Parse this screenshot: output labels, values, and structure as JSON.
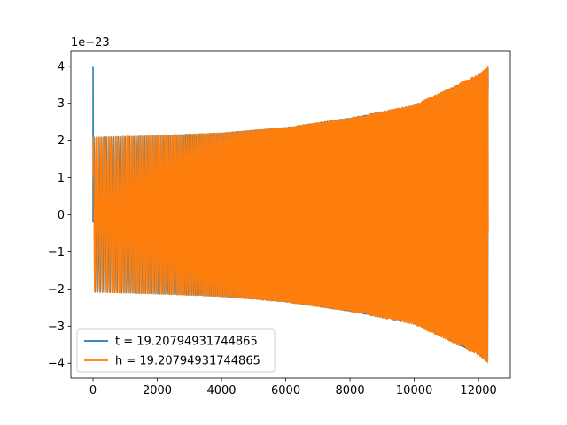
{
  "chart_data": {
    "type": "line",
    "title": "",
    "xlabel": "",
    "ylabel": "",
    "xlim": [
      -690,
      12990
    ],
    "ylim": [
      -4.4,
      4.4
    ],
    "y_scale_label": "1e−23",
    "x_ticks": [
      0,
      2000,
      4000,
      6000,
      8000,
      10000,
      12000
    ],
    "x_tick_labels": [
      "0",
      "2000",
      "4000",
      "6000",
      "8000",
      "10000",
      "12000"
    ],
    "y_ticks": [
      -4,
      -3,
      -2,
      -1,
      0,
      1,
      2,
      3,
      4
    ],
    "y_tick_labels": [
      "−4",
      "−3",
      "−2",
      "−1",
      "0",
      "1",
      "2",
      "3",
      "4"
    ],
    "grid": false,
    "legend_position": "lower-left",
    "series": [
      {
        "name": "t = 19.20794931744865",
        "color": "#1f77b4",
        "style": "oscillating chirp",
        "x_start": 0,
        "x_end": 12300,
        "initial_spike": 3.97,
        "envelope_start": 2.08,
        "envelope_end": 3.97,
        "envelope_points_x": [
          0,
          2000,
          4000,
          6000,
          8000,
          10000,
          12000,
          12300
        ],
        "envelope_points_y": [
          2.08,
          2.13,
          2.2,
          2.35,
          2.6,
          2.95,
          3.75,
          3.97
        ]
      },
      {
        "name": "h = 19.20794931744865",
        "color": "#ff7f0e",
        "style": "oscillating chirp",
        "x_start": 0,
        "x_end": 12300,
        "envelope_start": 2.08,
        "envelope_end": 4.0,
        "envelope_points_x": [
          0,
          2000,
          4000,
          6000,
          8000,
          10000,
          12000,
          12300
        ],
        "envelope_points_y": [
          2.08,
          2.13,
          2.2,
          2.35,
          2.6,
          2.95,
          3.78,
          4.0
        ]
      }
    ]
  }
}
